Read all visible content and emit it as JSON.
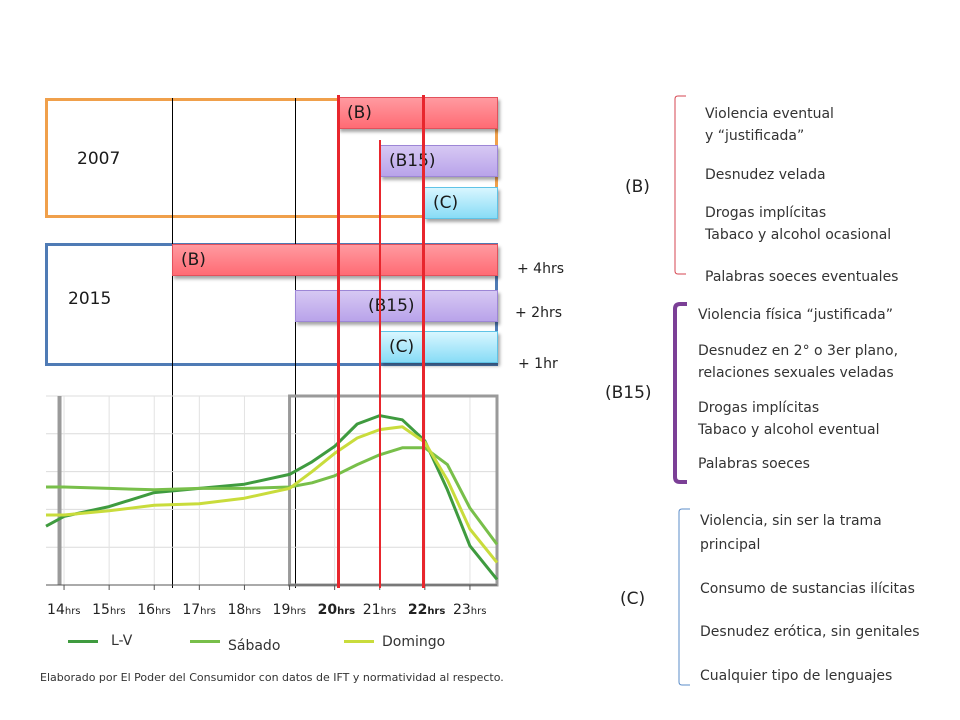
{
  "schedule": {
    "year_2007": "2007",
    "year_2015": "2015",
    "b_label": "(B)",
    "b15_label": "(B15)",
    "c_label": "(C)",
    "add_b": "+ 4hrs",
    "add_b15": "+ 2hrs",
    "add_c": "+ 1hr",
    "box_2007_color": "#f0a04b",
    "box_2015_color": "#4f7bb5",
    "marker_color": "#e8262d"
  },
  "chart_data": {
    "type": "line",
    "categories": [
      "14",
      "15",
      "16",
      "17",
      "18",
      "19",
      "20",
      "21",
      "22",
      "23"
    ],
    "tick_suffix": "hrs",
    "bold_ticks": [
      "20",
      "22"
    ],
    "series": [
      {
        "name": "L-V",
        "color": "#3f9b3f",
        "x": [
          13.6,
          14,
          15,
          16,
          17,
          18,
          19,
          19.5,
          20,
          20.5,
          21,
          21.5,
          22,
          22.5,
          23,
          23.6
        ],
        "values": [
          42,
          49,
          56,
          66,
          69,
          72,
          79,
          88,
          99,
          115,
          121,
          118,
          103,
          68,
          28,
          4
        ]
      },
      {
        "name": "Sábado",
        "color": "#78bf4a",
        "x": [
          13.6,
          14,
          15,
          16,
          17,
          18,
          19,
          19.5,
          20,
          20.5,
          21,
          21.5,
          22,
          22.5,
          23,
          23.6
        ],
        "values": [
          70,
          70,
          69,
          68,
          69,
          69,
          70,
          73,
          78,
          86,
          93,
          98,
          98,
          86,
          55,
          29
        ]
      },
      {
        "name": "Domingo",
        "color": "#c9dc3c",
        "x": [
          13.6,
          14,
          15,
          16,
          17,
          18,
          19,
          19.5,
          20,
          20.5,
          21,
          21.5,
          22,
          22.5,
          23,
          23.6
        ],
        "values": [
          50,
          50,
          53,
          57,
          58,
          62,
          69,
          81,
          94,
          105,
          111,
          113,
          102,
          75,
          40,
          16
        ]
      }
    ],
    "ylim": [
      0,
      135
    ],
    "xlim": [
      13.6,
      23.6
    ],
    "legend_position": "bottom"
  },
  "classification": {
    "b": {
      "label": "(B)",
      "items": [
        "Violencia eventual y “justificada”",
        "Desnudez velada",
        "Drogas implícitas",
        "Tabaco y alcohol ocasional",
        "Palabras soeces eventuales"
      ]
    },
    "b15": {
      "label": "(B15)",
      "items": [
        "Violencia física “justificada”",
        "Desnudez en 2° o 3er plano, relaciones sexuales veladas",
        "Drogas implícitas",
        "Tabaco y alcohol eventual",
        "Palabras soeces"
      ]
    },
    "c": {
      "label": "(C)",
      "items": [
        "Violencia, sin ser la trama principal",
        "Consumo de sustancias ilícitas",
        "Desnudez erótica, sin genitales",
        "Cualquier tipo de lenguajes"
      ]
    }
  },
  "footnote": "Elaborado por El Poder del Consumidor con datos de IFT y normatividad al respecto."
}
